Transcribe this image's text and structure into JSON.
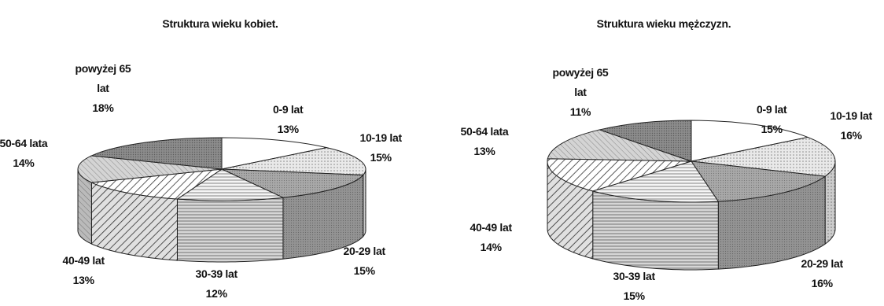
{
  "chart_data": [
    {
      "type": "pie",
      "title": "Struktura wieku kobiet.",
      "categories": [
        "0-9 lat",
        "10-19 lat",
        "20-29 lat",
        "30-39 lat",
        "40-49 lat",
        "50-64 lata",
        "powyżej 65 lat"
      ],
      "values": [
        13,
        15,
        15,
        12,
        13,
        14,
        18
      ],
      "value_labels": [
        "13%",
        "15%",
        "15%",
        "12%",
        "13%",
        "14%",
        "18%"
      ],
      "three_d": true,
      "legend": "none",
      "labels": [
        {
          "lines": [
            "0-9 lat"
          ],
          "value": "13%"
        },
        {
          "lines": [
            "10-19 lat"
          ],
          "value": "15%"
        },
        {
          "lines": [
            "20-29 lat"
          ],
          "value": "15%"
        },
        {
          "lines": [
            "30-39 lat"
          ],
          "value": "12%"
        },
        {
          "lines": [
            "40-49 lat"
          ],
          "value": "13%"
        },
        {
          "lines": [
            "50-64 lata"
          ],
          "value": "14%"
        },
        {
          "lines": [
            "powyżej 65",
            "lat"
          ],
          "value": "18%"
        }
      ]
    },
    {
      "type": "pie",
      "title": "Struktura wieku mężczyzn.",
      "categories": [
        "0-9 lat",
        "10-19 lat",
        "20-29 lat",
        "30-39 lat",
        "40-49 lat",
        "50-64 lata",
        "powyżej 65 lat"
      ],
      "values": [
        15,
        16,
        16,
        15,
        14,
        13,
        11
      ],
      "value_labels": [
        "15%",
        "16%",
        "16%",
        "15%",
        "14%",
        "13%",
        "11%"
      ],
      "three_d": true,
      "legend": "none",
      "labels": [
        {
          "lines": [
            "0-9 lat"
          ],
          "value": "15%"
        },
        {
          "lines": [
            "10-19 lat"
          ],
          "value": "16%"
        },
        {
          "lines": [
            "20-29 lat"
          ],
          "value": "16%"
        },
        {
          "lines": [
            "30-39 lat"
          ],
          "value": "15%"
        },
        {
          "lines": [
            "40-49 lat"
          ],
          "value": "14%"
        },
        {
          "lines": [
            "50-64 lata"
          ],
          "value": "13%"
        },
        {
          "lines": [
            "powyżej 65",
            "lat"
          ],
          "value": "11%"
        }
      ]
    }
  ]
}
